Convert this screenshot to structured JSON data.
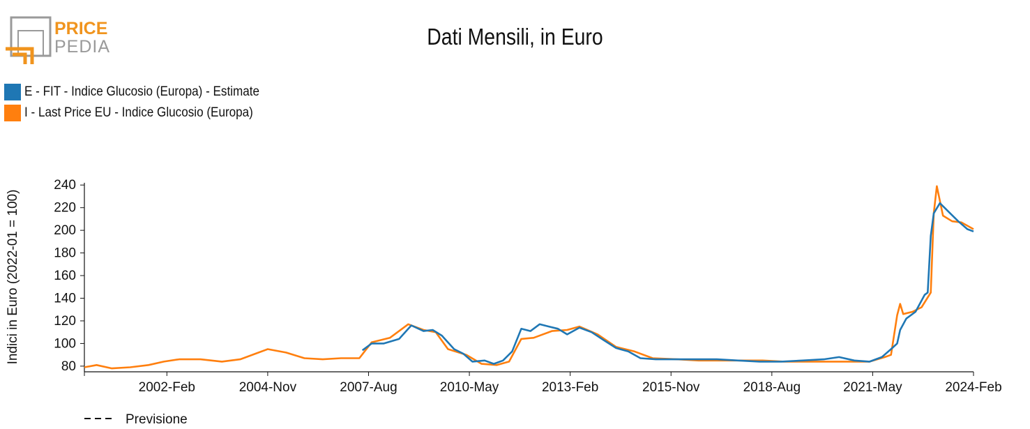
{
  "brand": {
    "word1": "PRICE",
    "word2": "PEDIA"
  },
  "colors": {
    "fit": "#1f77b4",
    "lastprice": "#ff7f0e",
    "logo_orange": "#f0941e",
    "logo_gray": "#9a9a9a"
  },
  "footer": {
    "forecast_label": "Previsione"
  },
  "chart_data": {
    "type": "line",
    "title": "Dati Mensili, in Euro",
    "ylabel": "Indici in Euro (2022-01 = 100)",
    "xlabel": "",
    "ylim": [
      75,
      242
    ],
    "yticks": [
      80,
      100,
      120,
      140,
      160,
      180,
      200,
      220,
      240
    ],
    "x_ticks": [
      "2002-Feb",
      "2004-Nov",
      "2007-Aug",
      "2010-May",
      "2013-Feb",
      "2015-Nov",
      "2018-Aug",
      "2021-May",
      "2024-Feb"
    ],
    "x_range": [
      "1999-11",
      "2024-02"
    ],
    "grid": false,
    "legend_position": "top-left",
    "series": [
      {
        "name": "E - FIT - Indice Glucosio (Europa) - Estimate",
        "color": "#1f77b4",
        "points": [
          [
            "2007-06",
            94
          ],
          [
            "2007-09",
            100
          ],
          [
            "2008-01",
            100
          ],
          [
            "2008-06",
            104
          ],
          [
            "2008-10",
            116
          ],
          [
            "2009-02",
            111
          ],
          [
            "2009-05",
            112
          ],
          [
            "2009-08",
            107
          ],
          [
            "2009-12",
            95
          ],
          [
            "2010-03",
            91
          ],
          [
            "2010-06",
            84
          ],
          [
            "2010-10",
            85
          ],
          [
            "2011-01",
            82
          ],
          [
            "2011-04",
            85
          ],
          [
            "2011-07",
            93
          ],
          [
            "2011-10",
            113
          ],
          [
            "2012-01",
            111
          ],
          [
            "2012-04",
            117
          ],
          [
            "2012-07",
            115
          ],
          [
            "2012-10",
            113
          ],
          [
            "2013-01",
            108
          ],
          [
            "2013-05",
            114
          ],
          [
            "2013-09",
            110
          ],
          [
            "2014-01",
            103
          ],
          [
            "2014-05",
            96
          ],
          [
            "2014-09",
            93
          ],
          [
            "2015-01",
            87
          ],
          [
            "2015-06",
            86
          ],
          [
            "2015-11",
            86
          ],
          [
            "2016-06",
            86
          ],
          [
            "2017-02",
            86
          ],
          [
            "2017-09",
            85
          ],
          [
            "2018-04",
            84
          ],
          [
            "2018-11",
            84
          ],
          [
            "2019-06",
            85
          ],
          [
            "2020-01",
            86
          ],
          [
            "2020-06",
            88
          ],
          [
            "2020-11",
            85
          ],
          [
            "2021-04",
            84
          ],
          [
            "2021-08",
            88
          ],
          [
            "2021-11",
            95
          ],
          [
            "2022-01",
            100
          ],
          [
            "2022-02",
            112
          ],
          [
            "2022-04",
            122
          ],
          [
            "2022-07",
            128
          ],
          [
            "2022-10",
            143
          ],
          [
            "2022-11",
            145
          ],
          [
            "2022-12",
            195
          ],
          [
            "2023-01",
            215
          ],
          [
            "2023-03",
            224
          ],
          [
            "2023-06",
            216
          ],
          [
            "2023-09",
            208
          ],
          [
            "2023-12",
            201
          ],
          [
            "2024-02",
            199
          ]
        ]
      },
      {
        "name": "I - Last Price EU - Indice Glucosio (Europa)",
        "color": "#ff7f0e",
        "points": [
          [
            "1999-11",
            79
          ],
          [
            "2000-03",
            81
          ],
          [
            "2000-08",
            78
          ],
          [
            "2001-02",
            79
          ],
          [
            "2001-08",
            81
          ],
          [
            "2002-01",
            84
          ],
          [
            "2002-06",
            86
          ],
          [
            "2003-01",
            86
          ],
          [
            "2003-08",
            84
          ],
          [
            "2004-02",
            86
          ],
          [
            "2004-07",
            91
          ],
          [
            "2004-11",
            95
          ],
          [
            "2005-05",
            92
          ],
          [
            "2005-11",
            87
          ],
          [
            "2006-05",
            86
          ],
          [
            "2006-11",
            87
          ],
          [
            "2007-05",
            87
          ],
          [
            "2007-09",
            101
          ],
          [
            "2008-03",
            105
          ],
          [
            "2008-09",
            117
          ],
          [
            "2009-02",
            112
          ],
          [
            "2009-06",
            110
          ],
          [
            "2009-10",
            95
          ],
          [
            "2010-04",
            90
          ],
          [
            "2010-09",
            82
          ],
          [
            "2011-02",
            81
          ],
          [
            "2011-06",
            84
          ],
          [
            "2011-10",
            104
          ],
          [
            "2012-02",
            105
          ],
          [
            "2012-08",
            111
          ],
          [
            "2013-01",
            112
          ],
          [
            "2013-05",
            115
          ],
          [
            "2013-11",
            108
          ],
          [
            "2014-05",
            97
          ],
          [
            "2014-11",
            93
          ],
          [
            "2015-05",
            87
          ],
          [
            "2016-01",
            86
          ],
          [
            "2016-08",
            85
          ],
          [
            "2017-03",
            85
          ],
          [
            "2017-10",
            85
          ],
          [
            "2018-05",
            85
          ],
          [
            "2018-12",
            84
          ],
          [
            "2019-07",
            84
          ],
          [
            "2020-02",
            84
          ],
          [
            "2020-09",
            84
          ],
          [
            "2021-04",
            84
          ],
          [
            "2021-09",
            88
          ],
          [
            "2021-11",
            90
          ],
          [
            "2022-01",
            125
          ],
          [
            "2022-02",
            135
          ],
          [
            "2022-03",
            126
          ],
          [
            "2022-06",
            128
          ],
          [
            "2022-09",
            132
          ],
          [
            "2022-12",
            145
          ],
          [
            "2023-01",
            215
          ],
          [
            "2023-02",
            239
          ],
          [
            "2023-04",
            213
          ],
          [
            "2023-07",
            208
          ],
          [
            "2023-10",
            207
          ],
          [
            "2024-02",
            201
          ]
        ]
      }
    ]
  }
}
